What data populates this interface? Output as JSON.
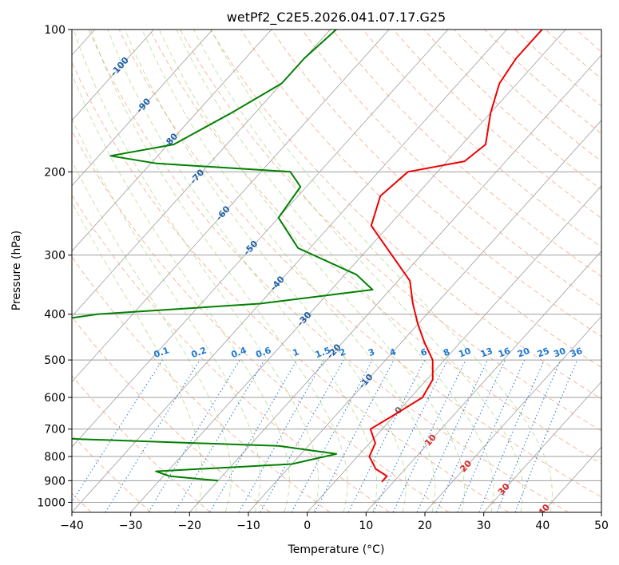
{
  "chart_data": {
    "type": "line",
    "title": "wetPf2_C2E5.2026.041.07.17.G25",
    "xlabel": "Temperature (°C)",
    "ylabel": "Pressure (hPa)",
    "xlim": [
      -40,
      50
    ],
    "ylim": [
      1050,
      100
    ],
    "y_scale": "log",
    "grid": true,
    "x_ticks": [
      -40,
      -30,
      -20,
      -10,
      0,
      10,
      20,
      30,
      40,
      50
    ],
    "y_ticks": [
      100,
      200,
      300,
      400,
      500,
      600,
      700,
      800,
      900,
      1000
    ],
    "series": [
      {
        "role": "temperature",
        "color": "#ee0000",
        "points": [
          [
            -34,
            100
          ],
          [
            -34,
            115
          ],
          [
            -33,
            130
          ],
          [
            -30,
            150
          ],
          [
            -26,
            175
          ],
          [
            -27,
            190
          ],
          [
            -35,
            200
          ],
          [
            -36,
            225
          ],
          [
            -33,
            260
          ],
          [
            -25,
            300
          ],
          [
            -18,
            340
          ],
          [
            -14,
            380
          ],
          [
            -10,
            420
          ],
          [
            -6,
            460
          ],
          [
            -2,
            500
          ],
          [
            1,
            550
          ],
          [
            2,
            600
          ],
          [
            0,
            650
          ],
          [
            -2,
            700
          ],
          [
            1,
            750
          ],
          [
            2,
            800
          ],
          [
            5,
            850
          ],
          [
            8,
            880
          ],
          [
            8,
            905
          ]
        ]
      },
      {
        "role": "dewpoint",
        "color": "#008000",
        "points": [
          [
            -69,
            100
          ],
          [
            -70,
            115
          ],
          [
            -70,
            130
          ],
          [
            -74,
            150
          ],
          [
            -79,
            175
          ],
          [
            -88,
            185
          ],
          [
            -79,
            192
          ],
          [
            -55,
            200
          ],
          [
            -51,
            215
          ],
          [
            -50,
            250
          ],
          [
            -42,
            290
          ],
          [
            -28,
            330
          ],
          [
            -23,
            355
          ],
          [
            -40,
            380
          ],
          [
            -66,
            400
          ],
          [
            -76,
            420
          ],
          [
            -90,
            450
          ],
          [
            -85,
            480
          ],
          [
            -90,
            505
          ],
          [
            -89,
            530
          ],
          [
            -94,
            555
          ],
          [
            -97,
            570
          ],
          [
            -90,
            590
          ],
          [
            -85,
            610
          ],
          [
            -93,
            640
          ],
          [
            -103,
            660
          ],
          [
            -102,
            690
          ],
          [
            -50,
            735
          ],
          [
            -15,
            760
          ],
          [
            -4,
            790
          ],
          [
            -10,
            830
          ],
          [
            -32,
            860
          ],
          [
            -29,
            880
          ],
          [
            -20,
            900
          ]
        ]
      }
    ],
    "isotherm_labels": [
      "-100",
      "-90",
      "-80",
      "-70",
      "-60",
      "-50",
      "-40",
      "-30",
      "-20",
      "-10",
      "0",
      "10",
      "20",
      "30",
      "40"
    ],
    "mixing_ratio_labels": [
      "0.1",
      "0.2",
      "0.4",
      "0.6",
      "1",
      "1.5",
      "2",
      "3",
      "4",
      "6",
      "8",
      "10",
      "13",
      "16",
      "20",
      "25",
      "30",
      "36"
    ]
  }
}
